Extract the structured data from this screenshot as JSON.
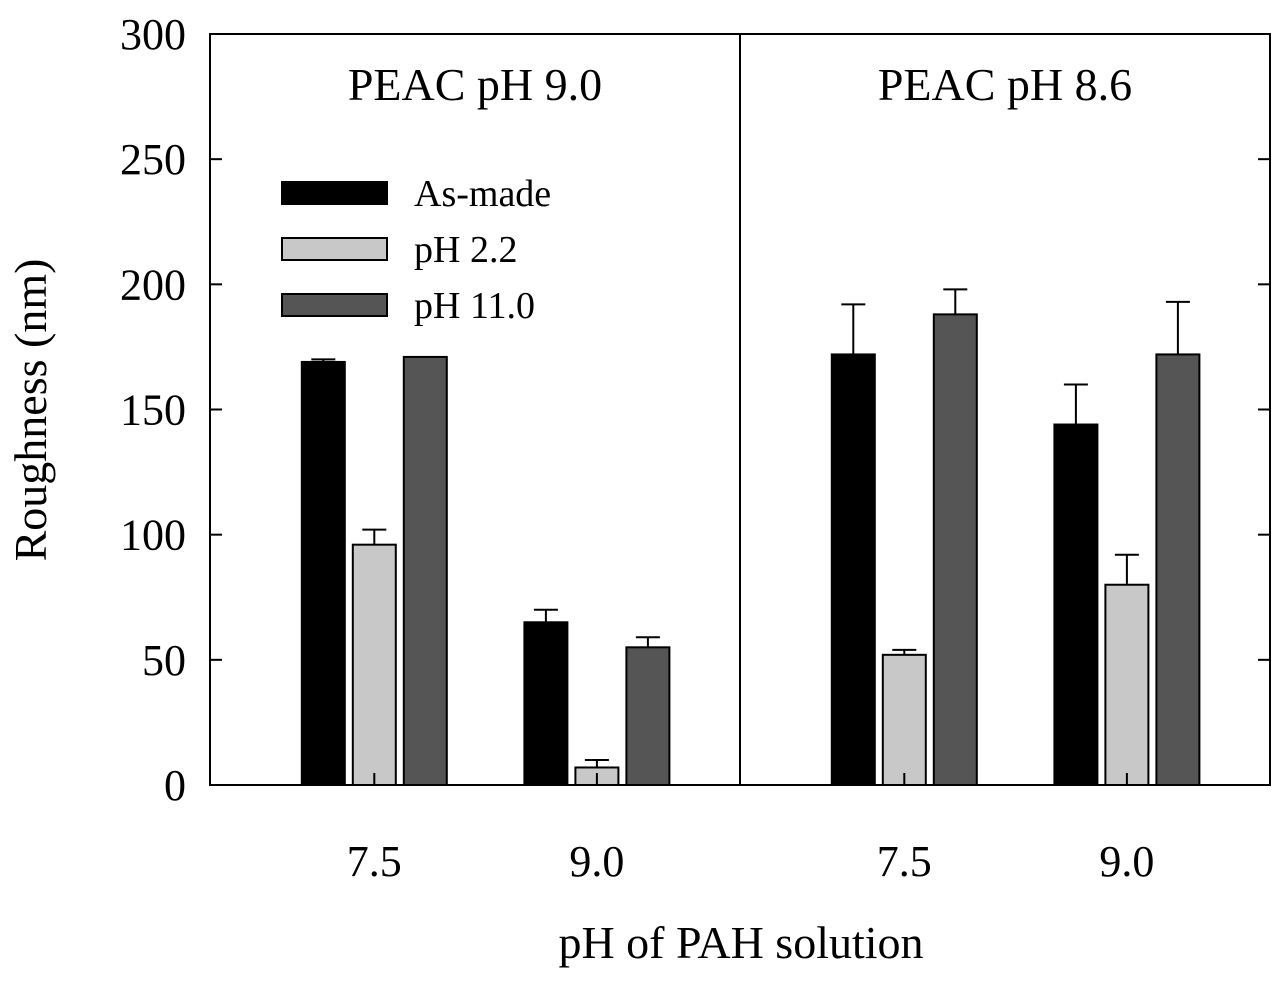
{
  "chart_data": {
    "type": "bar",
    "ylabel": "Roughness (nm)",
    "xlabel": "pH of PAH solution",
    "ylim": [
      0,
      300
    ],
    "yticks": [
      0,
      50,
      100,
      150,
      200,
      250,
      300
    ],
    "ytick_labels": [
      "0",
      "50",
      "100",
      "150",
      "200",
      "250",
      "300"
    ],
    "legend_position": "upper-left of left panel",
    "legend": [
      {
        "label": "As-made",
        "color": "#000000"
      },
      {
        "label": "pH 2.2",
        "color": "#c8c8c8"
      },
      {
        "label": "pH 11.0",
        "color": "#555555"
      }
    ],
    "panels": [
      {
        "title": "PEAC pH 9.0",
        "categories": [
          "7.5",
          "9.0"
        ],
        "series": [
          {
            "name": "As-made",
            "values": [
              169,
              65
            ],
            "errors": [
              1,
              5
            ]
          },
          {
            "name": "pH 2.2",
            "values": [
              96,
              7
            ],
            "errors": [
              6,
              3
            ]
          },
          {
            "name": "pH 11.0",
            "values": [
              171,
              55
            ],
            "errors": [
              0,
              4
            ]
          }
        ]
      },
      {
        "title": "PEAC pH 8.6",
        "categories": [
          "7.5",
          "9.0"
        ],
        "series": [
          {
            "name": "As-made",
            "values": [
              172,
              144
            ],
            "errors": [
              20,
              16
            ]
          },
          {
            "name": "pH 2.2",
            "values": [
              52,
              80
            ],
            "errors": [
              2,
              12
            ]
          },
          {
            "name": "pH 11.0",
            "values": [
              188,
              172
            ],
            "errors": [
              10,
              21
            ]
          }
        ]
      }
    ]
  }
}
